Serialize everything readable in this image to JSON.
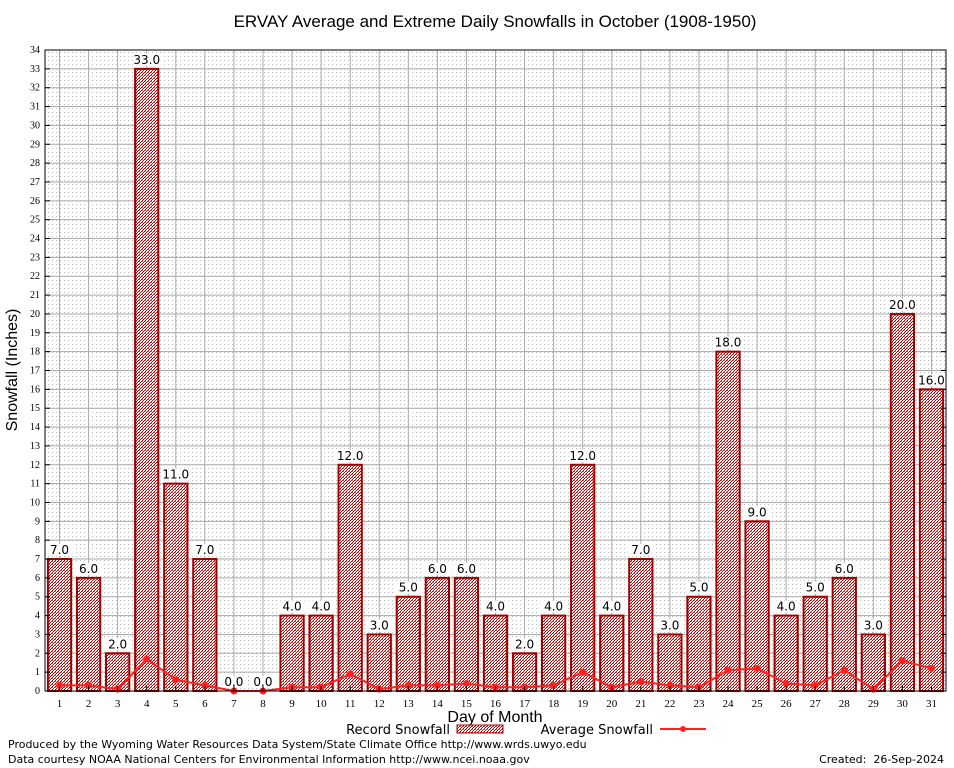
{
  "chart_data": {
    "type": "bar",
    "title": "ERVAY Average and Extreme Daily Snowfalls in October (1908-1950)",
    "xlabel": "Day of Month",
    "ylabel": "Snowfall (Inches)",
    "ylim": [
      0,
      34
    ],
    "grid": true,
    "legend_placement": "bottom",
    "categories": [
      "1",
      "2",
      "3",
      "4",
      "5",
      "6",
      "7",
      "8",
      "9",
      "10",
      "11",
      "12",
      "13",
      "14",
      "15",
      "16",
      "17",
      "18",
      "19",
      "20",
      "21",
      "22",
      "23",
      "24",
      "25",
      "26",
      "27",
      "28",
      "29",
      "30",
      "31"
    ],
    "series": [
      {
        "name": "Record Snowfall",
        "type": "bar",
        "color": "#b00000",
        "values": [
          7,
          6,
          2,
          33,
          11,
          7,
          0,
          0,
          4,
          4,
          12,
          3,
          5,
          6,
          6,
          4,
          2,
          4,
          12,
          4,
          7,
          3,
          5,
          18,
          9,
          4,
          5,
          6,
          3,
          20,
          16
        ],
        "labels": [
          "7.0",
          "6.0",
          "2.0",
          "33.0",
          "11.0",
          "7.0",
          "0.0",
          "0.0",
          "4.0",
          "4.0",
          "12.0",
          "3.0",
          "5.0",
          "6.0",
          "6.0",
          "4.0",
          "2.0",
          "4.0",
          "12.0",
          "4.0",
          "7.0",
          "3.0",
          "5.0",
          "18.0",
          "9.0",
          "4.0",
          "5.0",
          "6.0",
          "3.0",
          "20.0",
          "16.0"
        ]
      },
      {
        "name": "Average Snowfall",
        "type": "line",
        "color": "#ff2020",
        "values": [
          0.3,
          0.3,
          0.1,
          1.7,
          0.6,
          0.3,
          0.0,
          0.0,
          0.2,
          0.2,
          0.9,
          0.1,
          0.3,
          0.3,
          0.4,
          0.2,
          0.2,
          0.3,
          1.0,
          0.2,
          0.5,
          0.3,
          0.2,
          1.1,
          1.2,
          0.4,
          0.3,
          1.1,
          0.1,
          1.6,
          1.2
        ]
      }
    ]
  },
  "footer": {
    "credit1": "Produced by the Wyoming Water Resources Data System/State Climate Office http://www.wrds.uwyo.edu",
    "credit2": "Data courtesy NOAA National Centers for Environmental Information http://www.ncei.noaa.gov",
    "created": "Created:  26-Sep-2024"
  }
}
